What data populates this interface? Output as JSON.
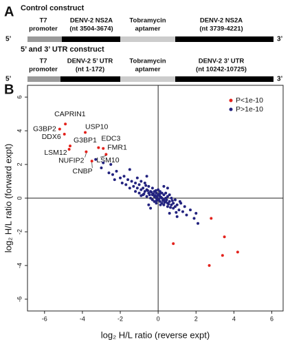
{
  "panel_a": {
    "label": "A",
    "constructs": [
      {
        "title": "Control construct",
        "end5": "5’",
        "end3": "3’",
        "segments": [
          [
            "T7",
            "promoter"
          ],
          [
            "DENV-2 NS2A",
            "(nt 3504-3674)"
          ],
          [
            "Tobramycin",
            "aptamer"
          ],
          [
            "DENV-2 NS2A",
            "(nt 3739-4221)"
          ]
        ]
      },
      {
        "title": "5’ and 3’ UTR construct",
        "end5": "5’",
        "end3": "3’",
        "segments": [
          [
            "T7",
            "promoter"
          ],
          [
            "DENV-2 5’ UTR",
            "(nt 1-172)"
          ],
          [
            "Tobramycin",
            "aptamer"
          ],
          [
            "DENV-2 3’ UTR",
            "(nt 10242-10725)"
          ]
        ]
      }
    ]
  },
  "chart_data": {
    "type": "scatter",
    "panel_label": "B",
    "xlabel": "log₂ H/L ratio (reverse expt)",
    "ylabel": "log₂ H/L ratio (forward expt)",
    "xlim": [
      -6.9,
      6.6
    ],
    "ylim": [
      -6.7,
      6.7
    ],
    "xticks": [
      -6,
      -4,
      -2,
      0,
      2,
      4,
      6
    ],
    "yticks": [
      -6,
      -4,
      -2,
      0,
      2,
      4,
      6
    ],
    "legend": "upper right",
    "series": [
      {
        "name": "P<1e-10",
        "color": "#e3221c",
        "x": [
          -4.9,
          -5.2,
          -4.95,
          -3.85,
          -4.65,
          -4.7,
          -3.15,
          -2.9,
          -2.75,
          -3.8,
          -3.5,
          2.8,
          0.8,
          3.5,
          3.4,
          4.2,
          2.7
        ],
        "values": [
          4.4,
          4.1,
          3.8,
          3.9,
          3.1,
          2.9,
          3.0,
          2.95,
          2.6,
          2.75,
          2.2,
          -1.2,
          -2.7,
          -2.3,
          -3.4,
          -3.2,
          -4.0
        ],
        "labels": [
          "CAPRIN1",
          "G3BP2",
          "DDX6",
          "USP10",
          "G3BP1",
          "LSM12",
          "EDC3",
          "FMR1",
          "LSM10",
          "NUFIP2",
          "CNBP",
          null,
          null,
          null,
          null,
          null,
          null
        ]
      },
      {
        "name": "P>1e-10",
        "color": "#23237f",
        "x": [
          -3.3,
          -3.0,
          -2.9,
          -2.6,
          -2.4,
          -2.3,
          -2.2,
          -2.0,
          -1.9,
          -1.8,
          -1.7,
          -1.6,
          -1.5,
          -1.4,
          -1.3,
          -1.2,
          -1.2,
          -1.1,
          -1.0,
          -1.0,
          -0.9,
          -0.9,
          -0.8,
          -0.8,
          -0.7,
          -0.7,
          -0.6,
          -0.6,
          -0.5,
          -0.5,
          -0.4,
          -0.4,
          -0.3,
          -0.3,
          -0.3,
          -0.2,
          -0.2,
          -0.2,
          -0.1,
          -0.1,
          -0.1,
          0,
          0,
          0,
          0.1,
          0.1,
          0.1,
          0.2,
          0.2,
          0.2,
          0.3,
          0.3,
          0.3,
          0.4,
          0.4,
          0.4,
          0.5,
          0.5,
          0.5,
          0.6,
          0.6,
          0.7,
          0.7,
          0.8,
          0.8,
          0.9,
          0.9,
          1.0,
          1.1,
          1.2,
          1.3,
          1.4,
          1.5,
          1.7,
          1.9,
          2.1,
          2.0,
          -0.5,
          0.3,
          -0.6,
          -1.5,
          -2.5,
          0.6,
          1.0,
          -0.4,
          0.5,
          -0.15,
          0.05,
          0.15,
          -0.05,
          0.25,
          -0.25,
          0.35,
          -0.35,
          0.45,
          -0.45,
          0.12,
          -0.12,
          0.08,
          -0.08,
          0.55,
          -0.55,
          0.65,
          -0.65,
          0.75,
          -0.75,
          1.15,
          -1.1,
          0.95,
          -0.9
        ],
        "values": [
          2.3,
          1.8,
          2.1,
          1.5,
          1.4,
          1.1,
          1.6,
          1.2,
          0.9,
          1.3,
          0.8,
          1.1,
          0.6,
          1.0,
          0.7,
          0.9,
          0.4,
          0.6,
          0.8,
          0.3,
          0.5,
          1.0,
          0.2,
          0.6,
          0.4,
          0.9,
          0.1,
          0.5,
          0.3,
          0.7,
          0,
          0.4,
          0.2,
          0.6,
          -0.1,
          0.1,
          0.4,
          -0.2,
          0.3,
          0,
          -0.3,
          0.2,
          -0.1,
          0.5,
          0.1,
          -0.2,
          0.4,
          0,
          -0.3,
          0.3,
          -0.1,
          0.2,
          -0.4,
          0,
          -0.2,
          0.3,
          -0.3,
          0.1,
          -0.5,
          -0.2,
          0.2,
          -0.4,
          0,
          -0.3,
          -0.6,
          -0.1,
          -0.5,
          -0.4,
          -0.7,
          -0.3,
          -0.8,
          -0.5,
          -1.0,
          -0.7,
          -1.2,
          -1.5,
          -0.9,
          -0.4,
          0.7,
          1.3,
          1.7,
          2.0,
          -0.9,
          -1.1,
          -0.6,
          0.6,
          0.15,
          -0.05,
          0.05,
          0.1,
          -0.15,
          0.25,
          -0.25,
          0.35,
          -0.1,
          0.2,
          -0.4,
          0.45,
          0.25,
          -0.15,
          -0.35,
          0.45,
          -0.55,
          0.75,
          -0.15,
          0.25,
          -0.2,
          1.2,
          -0.85,
          0.15
        ]
      }
    ]
  }
}
